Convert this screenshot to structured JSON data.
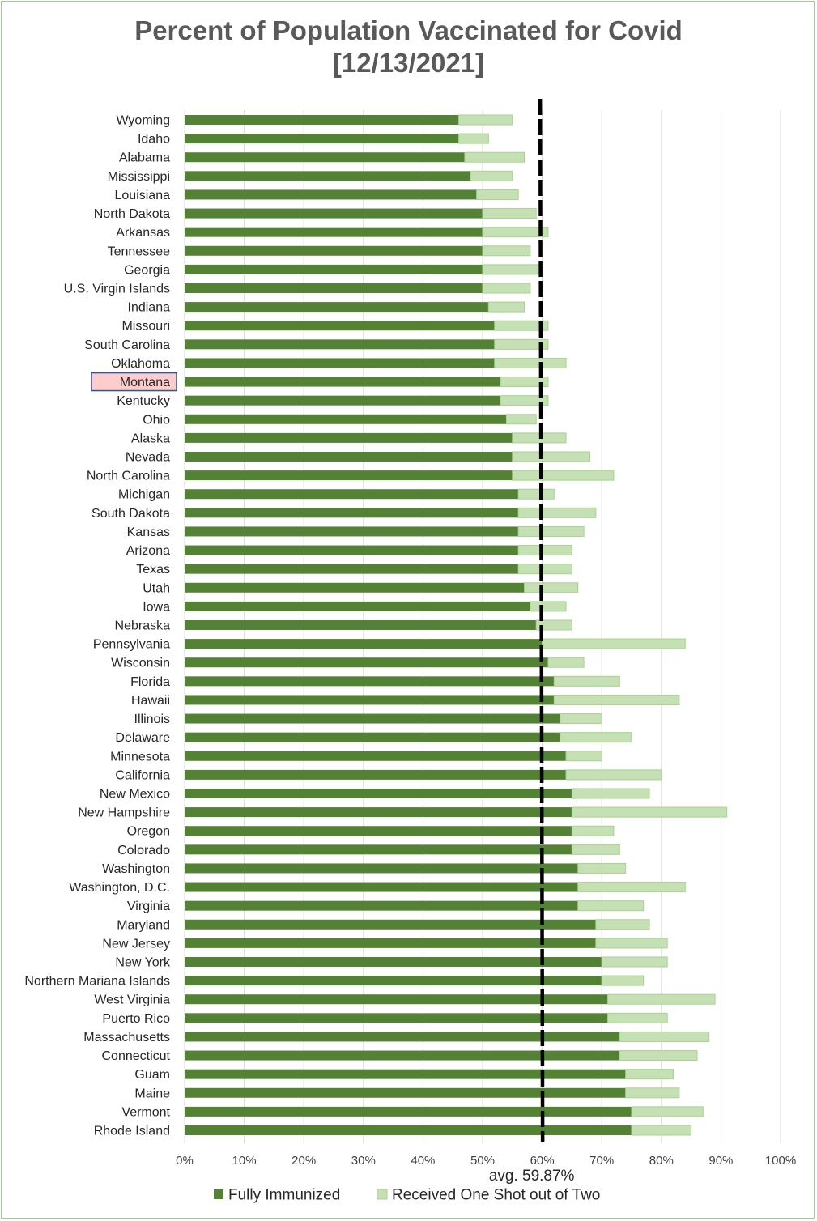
{
  "chart_data": {
    "type": "bar",
    "orientation": "horizontal",
    "stacked": true,
    "title": "Percent of Population Vaccinated for Covid",
    "subtitle": "[12/13/2021]",
    "xlim": [
      0,
      100
    ],
    "x_ticks": [
      "0%",
      "10%",
      "20%",
      "30%",
      "40%",
      "50%",
      "60%",
      "70%",
      "80%",
      "90%",
      "100%"
    ],
    "grid": "vertical",
    "legend_position": "bottom",
    "highlighted_category": "Montana",
    "average": {
      "value": 59.87,
      "label": "avg. 59.87%"
    },
    "categories": [
      "Wyoming",
      "Idaho",
      "Alabama",
      "Mississippi",
      "Louisiana",
      "North Dakota",
      "Arkansas",
      "Tennessee",
      "Georgia",
      "U.S. Virgin Islands",
      "Indiana",
      "Missouri",
      "South Carolina",
      "Oklahoma",
      "Montana",
      "Kentucky",
      "Ohio",
      "Alaska",
      "Nevada",
      "North Carolina",
      "Michigan",
      "South Dakota",
      "Kansas",
      "Arizona",
      "Texas",
      "Utah",
      "Iowa",
      "Nebraska",
      "Pennsylvania",
      "Wisconsin",
      "Florida",
      "Hawaii",
      "Illinois",
      "Delaware",
      "Minnesota",
      "California",
      "New Mexico",
      "New Hampshire",
      "Oregon",
      "Colorado",
      "Washington",
      "Washington, D.C.",
      "Virginia",
      "Maryland",
      "New Jersey",
      "New York",
      "Northern Mariana Islands",
      "West Virginia",
      "Puerto Rico",
      "Massachusetts",
      "Connecticut",
      "Guam",
      "Maine",
      "Vermont",
      "Rhode Island"
    ],
    "series": [
      {
        "name": "Fully Immunized",
        "color": "#548235",
        "values": [
          46,
          46,
          47,
          48,
          49,
          50,
          50,
          50,
          50,
          50,
          51,
          52,
          52,
          52,
          53,
          53,
          54,
          55,
          55,
          55,
          56,
          56,
          56,
          56,
          56,
          57,
          58,
          59,
          60,
          61,
          62,
          62,
          63,
          63,
          64,
          64,
          65,
          65,
          65,
          65,
          66,
          66,
          66,
          69,
          69,
          70,
          70,
          71,
          71,
          73,
          73,
          74,
          74,
          75,
          75
        ]
      },
      {
        "name": "Received One Shot out of Two",
        "color": "#c5e0b4",
        "values": [
          9,
          5,
          10,
          7,
          7,
          9,
          11,
          8,
          10,
          8,
          6,
          9,
          9,
          12,
          8,
          8,
          5,
          9,
          13,
          17,
          6,
          13,
          11,
          9,
          9,
          9,
          6,
          6,
          24,
          6,
          11,
          21,
          7,
          12,
          6,
          16,
          13,
          26,
          7,
          8,
          8,
          18,
          11,
          9,
          12,
          11,
          7,
          18,
          10,
          15,
          13,
          8,
          9,
          12,
          10
        ]
      }
    ]
  }
}
